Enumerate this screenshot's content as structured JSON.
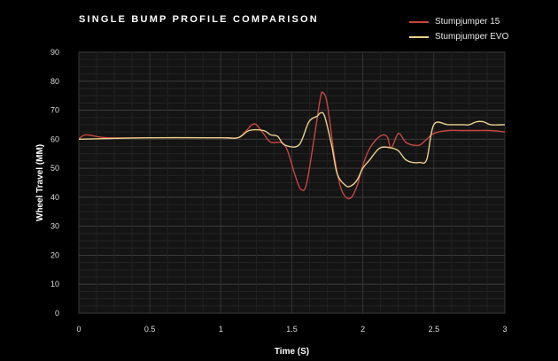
{
  "chart_data": {
    "type": "line",
    "title": "SINGLE BUMP PROFILE COMPARISON",
    "xlabel": "Time (S)",
    "ylabel": "Wheel Travel (MM)",
    "xlim": [
      0,
      3
    ],
    "ylim": [
      0,
      90
    ],
    "x_ticks": [
      "0",
      "0.5",
      "1",
      "1.5",
      "2",
      "2.5",
      "3"
    ],
    "y_ticks": [
      "0",
      "10",
      "20",
      "30",
      "40",
      "50",
      "60",
      "70",
      "80",
      "90"
    ],
    "grid": true,
    "legend_position": "top-right",
    "series": [
      {
        "name": "Stumpjumper 15",
        "color": "#c8463f",
        "x": [
          0,
          0.05,
          0.2,
          0.5,
          1.0,
          1.12,
          1.18,
          1.22,
          1.25,
          1.3,
          1.35,
          1.45,
          1.52,
          1.56,
          1.6,
          1.65,
          1.7,
          1.72,
          1.75,
          1.8,
          1.84,
          1.88,
          1.92,
          1.96,
          2.0,
          2.05,
          2.12,
          2.17,
          2.2,
          2.25,
          2.3,
          2.35,
          2.4,
          2.45,
          2.5,
          2.6,
          2.7,
          2.8,
          2.9,
          3.0
        ],
        "y": [
          60,
          61.5,
          60.5,
          60.5,
          60.5,
          60.5,
          63,
          65,
          65,
          62,
          59,
          58,
          48,
          43,
          44,
          58,
          74,
          76,
          72,
          54,
          44,
          40,
          40,
          44,
          51,
          57,
          61,
          61,
          57,
          62,
          59,
          58,
          58,
          60,
          62,
          63,
          63,
          63,
          63,
          62.5
        ]
      },
      {
        "name": "Stumpjumper EVO",
        "color": "#ead08c",
        "x": [
          0,
          0.5,
          1.0,
          1.12,
          1.2,
          1.3,
          1.35,
          1.4,
          1.45,
          1.55,
          1.62,
          1.68,
          1.7,
          1.73,
          1.78,
          1.82,
          1.88,
          1.92,
          1.96,
          2.0,
          2.05,
          2.12,
          2.2,
          2.25,
          2.3,
          2.35,
          2.4,
          2.45,
          2.5,
          2.6,
          2.7,
          2.75,
          2.8,
          2.85,
          2.9,
          3.0
        ],
        "y": [
          60,
          60.5,
          60.5,
          60.5,
          63,
          63,
          61.5,
          61,
          58,
          58,
          66,
          68,
          69,
          68,
          58,
          48,
          44,
          44,
          46,
          50,
          53,
          57,
          57,
          56,
          53,
          52,
          52,
          53,
          65,
          65,
          65,
          65,
          66,
          66,
          65,
          65
        ]
      }
    ]
  }
}
